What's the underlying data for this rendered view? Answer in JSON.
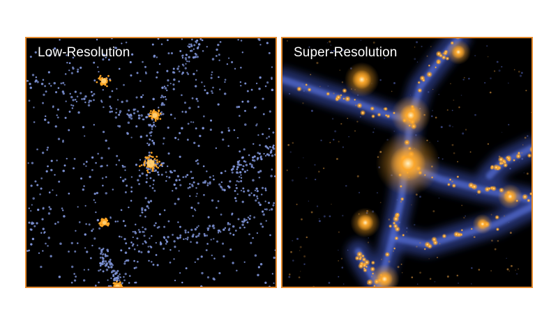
{
  "panels": {
    "left": {
      "label": "Low-Resolution"
    },
    "right": {
      "label": "Super-Resolution"
    }
  },
  "colors": {
    "border": "#e4892c",
    "background": "#000000",
    "particle": "#7f94d8",
    "halo": "#ffa726",
    "halo_core": "#ffd27a"
  }
}
